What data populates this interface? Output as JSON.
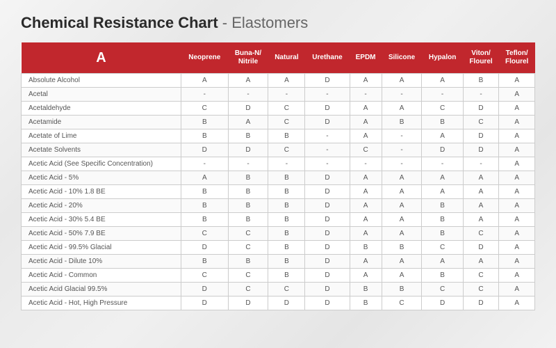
{
  "title_bold": "Chemical Resistance Chart",
  "title_light": " - Elastomers",
  "header_letter": "A",
  "colors": {
    "header_bg": "#c1272d",
    "header_text": "#ffffff",
    "border": "#cccccc",
    "row_alt": "#fafafa",
    "text": "#555555"
  },
  "columns": [
    "Neoprene",
    "Buna-N/\nNitrile",
    "Natural",
    "Urethane",
    "EPDM",
    "Silicone",
    "Hypalon",
    "Viton/\nFlourel",
    "Teflon/\nFlourel"
  ],
  "rows": [
    {
      "name": "Absolute Alcohol",
      "cells": [
        "A",
        "A",
        "A",
        "D",
        "A",
        "A",
        "A",
        "B",
        "A"
      ]
    },
    {
      "name": "Acetal",
      "cells": [
        "-",
        "-",
        "-",
        "-",
        "-",
        "-",
        "-",
        "-",
        "A"
      ]
    },
    {
      "name": "Acetaldehyde",
      "cells": [
        "C",
        "D",
        "C",
        "D",
        "A",
        "A",
        "C",
        "D",
        "A"
      ]
    },
    {
      "name": "Acetamide",
      "cells": [
        "B",
        "A",
        "C",
        "D",
        "A",
        "B",
        "B",
        "C",
        "A"
      ]
    },
    {
      "name": "Acetate of Lime",
      "cells": [
        "B",
        "B",
        "B",
        "-",
        "A",
        "-",
        "A",
        "D",
        "A"
      ]
    },
    {
      "name": "Acetate Solvents",
      "cells": [
        "D",
        "D",
        "C",
        "-",
        "C",
        "-",
        "D",
        "D",
        "A"
      ]
    },
    {
      "name": "Acetic Acid (See Specific Concentration)",
      "cells": [
        "-",
        "-",
        "-",
        "-",
        "-",
        "-",
        "-",
        "-",
        "A"
      ]
    },
    {
      "name": "Acetic Acid - 5%",
      "cells": [
        "A",
        "B",
        "B",
        "D",
        "A",
        "A",
        "A",
        "A",
        "A"
      ]
    },
    {
      "name": "Acetic Acid - 10% 1.8 BE",
      "cells": [
        "B",
        "B",
        "B",
        "D",
        "A",
        "A",
        "A",
        "A",
        "A"
      ]
    },
    {
      "name": "Acetic Acid - 20%",
      "cells": [
        "B",
        "B",
        "B",
        "D",
        "A",
        "A",
        "B",
        "A",
        "A"
      ]
    },
    {
      "name": "Acetic Acid - 30% 5.4 BE",
      "cells": [
        "B",
        "B",
        "B",
        "D",
        "A",
        "A",
        "B",
        "A",
        "A"
      ]
    },
    {
      "name": "Acetic Acid - 50% 7.9 BE",
      "cells": [
        "C",
        "C",
        "B",
        "D",
        "A",
        "A",
        "B",
        "C",
        "A"
      ]
    },
    {
      "name": "Acetic Acid - 99.5% Glacial",
      "cells": [
        "D",
        "C",
        "B",
        "D",
        "B",
        "B",
        "C",
        "D",
        "A"
      ]
    },
    {
      "name": "Acetic Acid - Dilute 10%",
      "cells": [
        "B",
        "B",
        "B",
        "D",
        "A",
        "A",
        "A",
        "A",
        "A"
      ]
    },
    {
      "name": "Acetic Acid - Common",
      "cells": [
        "C",
        "C",
        "B",
        "D",
        "A",
        "A",
        "B",
        "C",
        "A"
      ]
    },
    {
      "name": "Acetic Acid Glacial 99.5%",
      "cells": [
        "D",
        "C",
        "C",
        "D",
        "B",
        "B",
        "C",
        "C",
        "A"
      ]
    },
    {
      "name": "Acetic Acid - Hot, High Pressure",
      "cells": [
        "D",
        "D",
        "D",
        "D",
        "B",
        "C",
        "D",
        "D",
        "A"
      ]
    }
  ]
}
